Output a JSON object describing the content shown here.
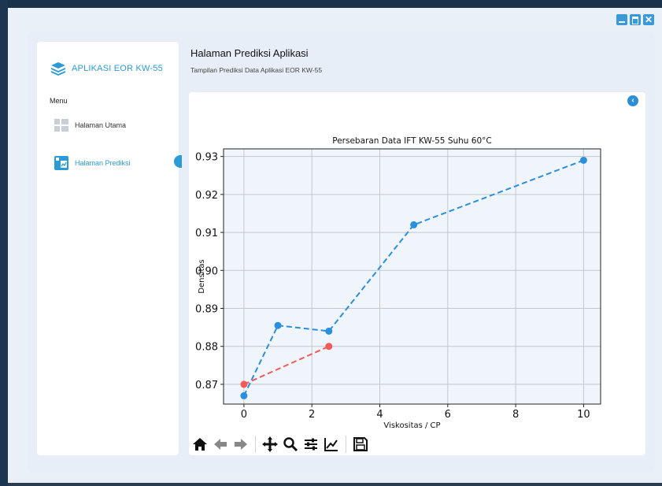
{
  "app": {
    "brand": "APLIKASI EOR KW-55"
  },
  "window_controls": {
    "close_glyph": "✕"
  },
  "sidebar": {
    "menu_label": "Menu",
    "items": [
      {
        "label": "Halaman Utama",
        "icon": "grid-icon",
        "active": false
      },
      {
        "label": "Halaman Prediksi",
        "icon": "chart-icon",
        "active": true
      }
    ]
  },
  "header": {
    "title": "Halaman Prediksi Aplikasi",
    "subtitle": "Tampilan Prediksi Data Aplikasi EOR KW-55"
  },
  "back_button": {
    "glyph": "‹"
  },
  "colors": {
    "accent": "#2a9bd6",
    "series_blue": "#2a8fdf",
    "series_red": "#f25a5a",
    "plot_bg": "#f0f4fb"
  },
  "chart_data": {
    "type": "line",
    "title": "Persebaran Data IFT KW-55 Suhu 60°C",
    "xlabel": "Viskositas / CP",
    "ylabel": "Densitas",
    "xlim": [
      -0.6,
      10.5
    ],
    "ylim": [
      0.8648,
      0.932
    ],
    "xticks": [
      0,
      2,
      4,
      6,
      8,
      10
    ],
    "yticks": [
      0.87,
      0.88,
      0.89,
      0.9,
      0.91,
      0.92,
      0.93
    ],
    "ytick_labels": [
      "0.87",
      "0.88",
      "0.89",
      "0.90",
      "0.91",
      "0.92",
      "0.93"
    ],
    "grid": true,
    "series": [
      {
        "color": "#2a8fdf",
        "style": "dashed",
        "x": [
          0,
          1,
          2.5,
          5,
          10
        ],
        "y": [
          0.867,
          0.8855,
          0.884,
          0.912,
          0.929
        ]
      },
      {
        "color": "#f25a5a",
        "style": "dashed",
        "x": [
          0,
          2.5
        ],
        "y": [
          0.87,
          0.88
        ]
      }
    ]
  },
  "toolbar": {
    "tools": [
      "home-icon",
      "back-arrow-icon",
      "forward-arrow-icon",
      "pan-icon",
      "zoom-icon",
      "configure-subplots-icon",
      "edit-axis-icon",
      "save-icon"
    ]
  }
}
